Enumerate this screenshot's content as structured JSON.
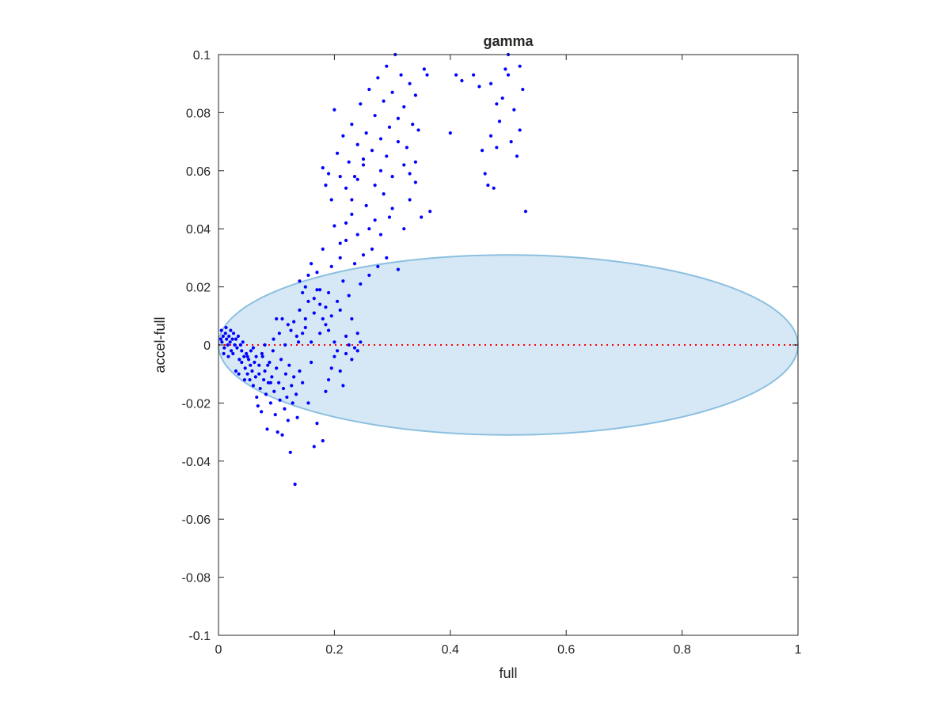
{
  "chart_data": {
    "type": "scatter",
    "title": "gamma",
    "xlabel": "full",
    "ylabel": "accel-full",
    "xlim": [
      0,
      1
    ],
    "ylim": [
      -0.1,
      0.1
    ],
    "xticks": [
      0,
      0.2,
      0.4,
      0.6,
      0.8,
      1
    ],
    "xtick_labels": [
      "0",
      "0.2",
      "0.4",
      "0.6",
      "0.8",
      "1"
    ],
    "yticks": [
      -0.1,
      -0.08,
      -0.06,
      -0.04,
      -0.02,
      0,
      0.02,
      0.04,
      0.06,
      0.08,
      0.1
    ],
    "ytick_labels": [
      "-0.1",
      "-0.08",
      "-0.06",
      "-0.04",
      "-0.02",
      "0",
      "0.02",
      "0.04",
      "0.06",
      "0.08",
      "0.1"
    ],
    "grid": false,
    "colors": {
      "points": "#0000ff",
      "ellipse_fill": "#d6e8f5",
      "ellipse_edge": "#8cbfe0",
      "zero_line": "#ff0000",
      "axes": "#262626"
    },
    "ellipse": {
      "cx": 0.5,
      "cy": 0,
      "rx": 0.5,
      "ry": 0.031
    },
    "zero_line": {
      "y": 0,
      "x": [
        0,
        1
      ],
      "style": "dotted"
    },
    "points": [
      [
        0.004,
        0.002
      ],
      [
        0.006,
        0.001
      ],
      [
        0.008,
        0.003
      ],
      [
        0.01,
        -0.001
      ],
      [
        0.012,
        0.004
      ],
      [
        0.014,
        0.002
      ],
      [
        0.016,
        0.0
      ],
      [
        0.018,
        0.003
      ],
      [
        0.02,
        0.001
      ],
      [
        0.022,
        -0.002
      ],
      [
        0.024,
        0.002
      ],
      [
        0.026,
        0.004
      ],
      [
        0.028,
        0.0
      ],
      [
        0.005,
        0.005
      ],
      [
        0.009,
        -0.003
      ],
      [
        0.013,
        0.006
      ],
      [
        0.017,
        -0.004
      ],
      [
        0.021,
        0.005
      ],
      [
        0.025,
        -0.003
      ],
      [
        0.03,
        0.002
      ],
      [
        0.032,
        -0.001
      ],
      [
        0.034,
        0.003
      ],
      [
        0.036,
        -0.005
      ],
      [
        0.038,
        0.0
      ],
      [
        0.04,
        -0.006
      ],
      [
        0.042,
        0.001
      ],
      [
        0.044,
        -0.004
      ],
      [
        0.046,
        -0.008
      ],
      [
        0.048,
        -0.003
      ],
      [
        0.05,
        -0.01
      ],
      [
        0.052,
        -0.005
      ],
      [
        0.054,
        -0.012
      ],
      [
        0.056,
        -0.002
      ],
      [
        0.058,
        -0.009
      ],
      [
        0.06,
        -0.014
      ],
      [
        0.062,
        -0.006
      ],
      [
        0.064,
        -0.011
      ],
      [
        0.066,
        -0.018
      ],
      [
        0.068,
        -0.021
      ],
      [
        0.07,
        -0.007
      ],
      [
        0.072,
        -0.015
      ],
      [
        0.074,
        -0.023
      ],
      [
        0.076,
        -0.004
      ],
      [
        0.078,
        -0.012
      ],
      [
        0.08,
        -0.009
      ],
      [
        0.082,
        -0.017
      ],
      [
        0.084,
        -0.029
      ],
      [
        0.086,
        -0.013
      ],
      [
        0.088,
        -0.006
      ],
      [
        0.09,
        -0.02
      ],
      [
        0.092,
        -0.011
      ],
      [
        0.094,
        -0.002
      ],
      [
        0.096,
        -0.016
      ],
      [
        0.098,
        -0.024
      ],
      [
        0.1,
        -0.008
      ],
      [
        0.102,
        -0.03
      ],
      [
        0.104,
        -0.013
      ],
      [
        0.106,
        -0.019
      ],
      [
        0.108,
        -0.005
      ],
      [
        0.11,
        -0.031
      ],
      [
        0.112,
        -0.015
      ],
      [
        0.114,
        -0.022
      ],
      [
        0.116,
        -0.01
      ],
      [
        0.118,
        -0.018
      ],
      [
        0.12,
        -0.026
      ],
      [
        0.122,
        -0.007
      ],
      [
        0.124,
        -0.037
      ],
      [
        0.126,
        -0.014
      ],
      [
        0.128,
        -0.02
      ],
      [
        0.13,
        -0.011
      ],
      [
        0.132,
        -0.048
      ],
      [
        0.134,
        -0.017
      ],
      [
        0.136,
        -0.025
      ],
      [
        0.138,
        0.001
      ],
      [
        0.14,
        -0.009
      ],
      [
        0.145,
        -0.013
      ],
      [
        0.15,
        0.006
      ],
      [
        0.155,
        -0.02
      ],
      [
        0.16,
        -0.006
      ],
      [
        0.165,
        -0.035
      ],
      [
        0.17,
        -0.027
      ],
      [
        0.175,
        0.004
      ],
      [
        0.18,
        -0.033
      ],
      [
        0.185,
        -0.016
      ],
      [
        0.19,
        -0.012
      ],
      [
        0.195,
        -0.008
      ],
      [
        0.2,
        -0.004
      ],
      [
        0.205,
        -0.002
      ],
      [
        0.21,
        -0.009
      ],
      [
        0.215,
        -0.014
      ],
      [
        0.22,
        -0.003
      ],
      [
        0.225,
        0.0
      ],
      [
        0.23,
        -0.005
      ],
      [
        0.235,
        -0.001
      ],
      [
        0.24,
        -0.002
      ],
      [
        0.245,
        0.001
      ],
      [
        0.03,
        -0.009
      ],
      [
        0.035,
        -0.01
      ],
      [
        0.04,
        -0.002
      ],
      [
        0.045,
        -0.012
      ],
      [
        0.05,
        -0.004
      ],
      [
        0.055,
        -0.007
      ],
      [
        0.06,
        -0.001
      ],
      [
        0.065,
        -0.004
      ],
      [
        0.07,
        -0.01
      ],
      [
        0.075,
        -0.003
      ],
      [
        0.08,
        0.0
      ],
      [
        0.085,
        -0.007
      ],
      [
        0.09,
        -0.013
      ],
      [
        0.095,
        0.002
      ],
      [
        0.1,
        0.009
      ],
      [
        0.105,
        0.004
      ],
      [
        0.11,
        0.009
      ],
      [
        0.115,
        0.0
      ],
      [
        0.12,
        0.007
      ],
      [
        0.125,
        0.005
      ],
      [
        0.13,
        0.008
      ],
      [
        0.135,
        0.003
      ],
      [
        0.14,
        0.012
      ],
      [
        0.145,
        0.004
      ],
      [
        0.15,
        0.009
      ],
      [
        0.155,
        0.015
      ],
      [
        0.16,
        0.001
      ],
      [
        0.165,
        0.011
      ],
      [
        0.17,
        0.019
      ],
      [
        0.175,
        0.014
      ],
      [
        0.18,
        0.009
      ],
      [
        0.185,
        0.007
      ],
      [
        0.19,
        0.005
      ],
      [
        0.195,
        0.01
      ],
      [
        0.2,
        0.001
      ],
      [
        0.21,
        0.012
      ],
      [
        0.22,
        0.003
      ],
      [
        0.23,
        0.009
      ],
      [
        0.24,
        0.004
      ],
      [
        0.14,
        0.022
      ],
      [
        0.145,
        0.018
      ],
      [
        0.15,
        0.02
      ],
      [
        0.155,
        0.024
      ],
      [
        0.16,
        0.028
      ],
      [
        0.165,
        0.016
      ],
      [
        0.17,
        0.025
      ],
      [
        0.175,
        0.019
      ],
      [
        0.18,
        0.033
      ],
      [
        0.185,
        0.013
      ],
      [
        0.19,
        0.018
      ],
      [
        0.195,
        0.027
      ],
      [
        0.2,
        0.041
      ],
      [
        0.205,
        0.015
      ],
      [
        0.21,
        0.03
      ],
      [
        0.215,
        0.022
      ],
      [
        0.22,
        0.036
      ],
      [
        0.225,
        0.017
      ],
      [
        0.23,
        0.045
      ],
      [
        0.235,
        0.028
      ],
      [
        0.24,
        0.038
      ],
      [
        0.245,
        0.021
      ],
      [
        0.25,
        0.031
      ],
      [
        0.255,
        0.048
      ],
      [
        0.26,
        0.024
      ],
      [
        0.265,
        0.033
      ],
      [
        0.27,
        0.043
      ],
      [
        0.275,
        0.027
      ],
      [
        0.28,
        0.038
      ],
      [
        0.285,
        0.052
      ],
      [
        0.29,
        0.03
      ],
      [
        0.295,
        0.044
      ],
      [
        0.3,
        0.047
      ],
      [
        0.31,
        0.026
      ],
      [
        0.32,
        0.04
      ],
      [
        0.33,
        0.05
      ],
      [
        0.34,
        0.056
      ],
      [
        0.35,
        0.044
      ],
      [
        0.365,
        0.046
      ],
      [
        0.18,
        0.061
      ],
      [
        0.185,
        0.055
      ],
      [
        0.19,
        0.059
      ],
      [
        0.195,
        0.05
      ],
      [
        0.2,
        0.081
      ],
      [
        0.205,
        0.066
      ],
      [
        0.21,
        0.058
      ],
      [
        0.215,
        0.072
      ],
      [
        0.22,
        0.054
      ],
      [
        0.225,
        0.063
      ],
      [
        0.23,
        0.076
      ],
      [
        0.235,
        0.058
      ],
      [
        0.24,
        0.069
      ],
      [
        0.245,
        0.083
      ],
      [
        0.25,
        0.062
      ],
      [
        0.255,
        0.073
      ],
      [
        0.26,
        0.088
      ],
      [
        0.265,
        0.067
      ],
      [
        0.27,
        0.079
      ],
      [
        0.275,
        0.092
      ],
      [
        0.28,
        0.071
      ],
      [
        0.285,
        0.084
      ],
      [
        0.29,
        0.096
      ],
      [
        0.295,
        0.075
      ],
      [
        0.3,
        0.087
      ],
      [
        0.305,
        0.1
      ],
      [
        0.31,
        0.078
      ],
      [
        0.315,
        0.093
      ],
      [
        0.32,
        0.082
      ],
      [
        0.325,
        0.068
      ],
      [
        0.33,
        0.09
      ],
      [
        0.335,
        0.076
      ],
      [
        0.34,
        0.086
      ],
      [
        0.345,
        0.074
      ],
      [
        0.355,
        0.095
      ],
      [
        0.36,
        0.093
      ],
      [
        0.21,
        0.035
      ],
      [
        0.22,
        0.042
      ],
      [
        0.23,
        0.05
      ],
      [
        0.24,
        0.057
      ],
      [
        0.25,
        0.064
      ],
      [
        0.26,
        0.04
      ],
      [
        0.27,
        0.055
      ],
      [
        0.28,
        0.06
      ],
      [
        0.29,
        0.065
      ],
      [
        0.3,
        0.058
      ],
      [
        0.31,
        0.07
      ],
      [
        0.32,
        0.062
      ],
      [
        0.33,
        0.059
      ],
      [
        0.34,
        0.063
      ],
      [
        0.4,
        0.073
      ],
      [
        0.41,
        0.093
      ],
      [
        0.42,
        0.091
      ],
      [
        0.44,
        0.093
      ],
      [
        0.45,
        0.089
      ],
      [
        0.455,
        0.067
      ],
      [
        0.46,
        0.059
      ],
      [
        0.465,
        0.055
      ],
      [
        0.47,
        0.072
      ],
      [
        0.475,
        0.054
      ],
      [
        0.48,
        0.068
      ],
      [
        0.485,
        0.077
      ],
      [
        0.49,
        0.085
      ],
      [
        0.495,
        0.095
      ],
      [
        0.5,
        0.1
      ],
      [
        0.505,
        0.07
      ],
      [
        0.51,
        0.081
      ],
      [
        0.515,
        0.065
      ],
      [
        0.52,
        0.074
      ],
      [
        0.525,
        0.088
      ],
      [
        0.53,
        0.046
      ],
      [
        0.48,
        0.083
      ],
      [
        0.47,
        0.09
      ],
      [
        0.5,
        0.093
      ],
      [
        0.52,
        0.096
      ]
    ]
  }
}
